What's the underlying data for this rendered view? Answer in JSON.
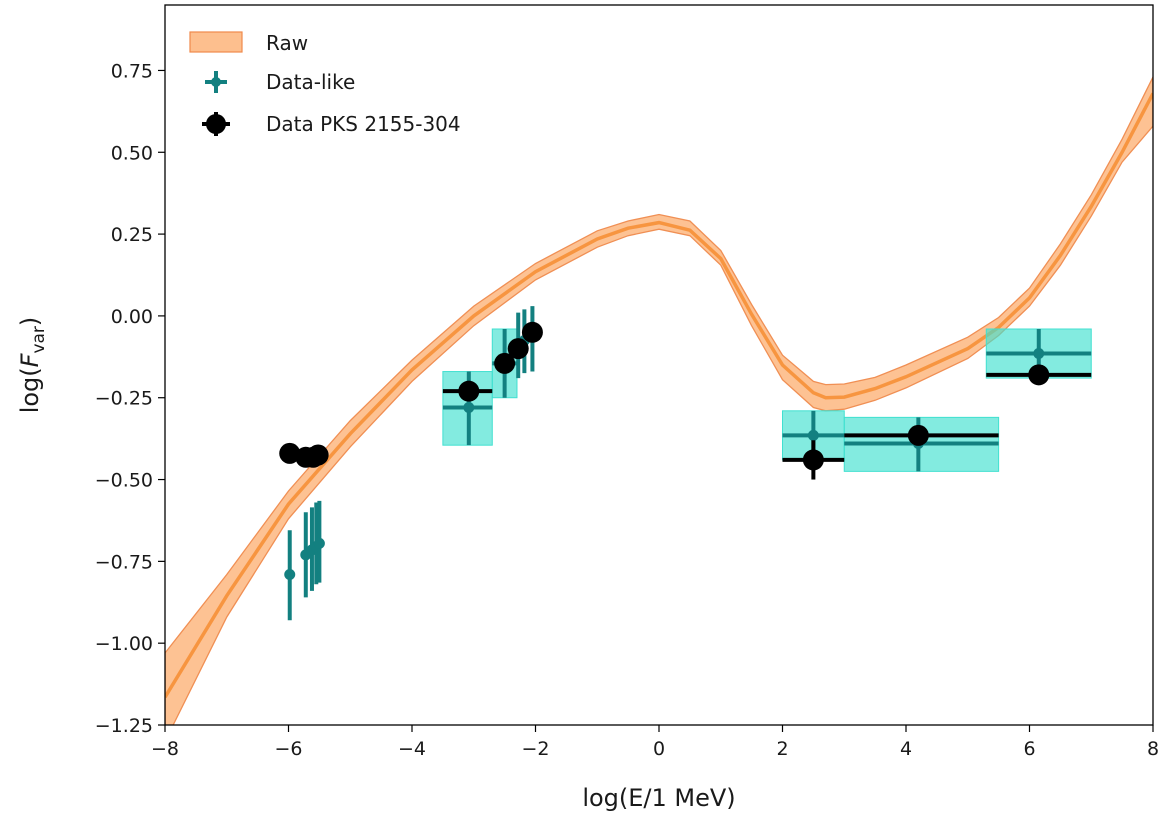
{
  "chart_data": {
    "type": "scatter",
    "xlabel": "log(E/1 MeV)",
    "ylabel": {
      "base": "log(",
      "italic": "F",
      "subscript": "var",
      "close": ")"
    },
    "xlim": [
      -8,
      8
    ],
    "ylim": [
      -1.25,
      0.95
    ],
    "x_ticks": [
      {
        "value": -8,
        "label": "−8"
      },
      {
        "value": -6,
        "label": "−6"
      },
      {
        "value": -4,
        "label": "−4"
      },
      {
        "value": -2,
        "label": "−2"
      },
      {
        "value": 0,
        "label": "0"
      },
      {
        "value": 2,
        "label": "2"
      },
      {
        "value": 4,
        "label": "4"
      },
      {
        "value": 6,
        "label": "6"
      },
      {
        "value": 8,
        "label": "8"
      }
    ],
    "y_ticks": [
      {
        "value": 0.75,
        "label": "0.75"
      },
      {
        "value": 0.5,
        "label": "0.50"
      },
      {
        "value": 0.25,
        "label": "0.25"
      },
      {
        "value": 0.0,
        "label": "0.00"
      },
      {
        "value": -0.25,
        "label": "−0.25"
      },
      {
        "value": -0.5,
        "label": "−0.50"
      },
      {
        "value": -0.75,
        "label": "−0.75"
      },
      {
        "value": -1.0,
        "label": "−1.00"
      },
      {
        "value": -1.25,
        "label": "−1.25"
      }
    ],
    "grid": false,
    "legend_position": "top-left",
    "legend": [
      "Raw",
      "Data-like",
      "Data PKS 2155-304"
    ],
    "colors": {
      "band": "#fdbf8e",
      "band_edge": "#f08a4b",
      "line": "#f79540",
      "datalike": "#138080",
      "box": "#40e0d0",
      "data": "#000000"
    },
    "series": [
      {
        "name": "Raw",
        "kind": "band",
        "x": [
          -8,
          -7,
          -6,
          -5,
          -4,
          -3,
          -2,
          -1,
          -0.5,
          0,
          0.5,
          1,
          1.5,
          2,
          2.5,
          2.7,
          3,
          3.5,
          4,
          5,
          5.5,
          6,
          6.5,
          7,
          7.5,
          8
        ],
        "center": [
          -1.165,
          -0.855,
          -0.575,
          -0.36,
          -0.165,
          0.0,
          0.135,
          0.235,
          0.268,
          0.285,
          0.262,
          0.175,
          0.005,
          -0.15,
          -0.235,
          -0.25,
          -0.248,
          -0.222,
          -0.186,
          -0.1,
          -0.035,
          0.055,
          0.185,
          0.335,
          0.5,
          0.68
        ],
        "lower": [
          -1.3,
          -0.92,
          -0.62,
          -0.4,
          -0.2,
          -0.03,
          0.11,
          0.21,
          0.245,
          0.265,
          0.245,
          0.155,
          -0.03,
          -0.195,
          -0.28,
          -0.29,
          -0.285,
          -0.258,
          -0.22,
          -0.13,
          -0.06,
          0.03,
          0.155,
          0.305,
          0.47,
          0.58
        ],
        "upper": [
          -1.03,
          -0.79,
          -0.535,
          -0.32,
          -0.135,
          0.03,
          0.16,
          0.26,
          0.29,
          0.31,
          0.29,
          0.2,
          0.035,
          -0.12,
          -0.2,
          -0.21,
          -0.208,
          -0.188,
          -0.15,
          -0.065,
          -0.005,
          0.085,
          0.22,
          0.37,
          0.54,
          0.73
        ]
      },
      {
        "name": "Data-like",
        "kind": "errorbar",
        "points": [
          {
            "x": -5.98,
            "y": -0.79,
            "xlo": -5.98,
            "xhi": -5.98,
            "ylo": -0.93,
            "yhi": -0.655,
            "box": false
          },
          {
            "x": -5.72,
            "y": -0.73,
            "xlo": -5.72,
            "xhi": -5.72,
            "ylo": -0.86,
            "yhi": -0.6,
            "box": false
          },
          {
            "x": -5.62,
            "y": -0.715,
            "xlo": -5.62,
            "xhi": -5.62,
            "ylo": -0.84,
            "yhi": -0.585,
            "box": false
          },
          {
            "x": -5.55,
            "y": -0.705,
            "xlo": -5.55,
            "xhi": -5.55,
            "ylo": -0.82,
            "yhi": -0.57,
            "box": false
          },
          {
            "x": -5.5,
            "y": -0.695,
            "xlo": -5.5,
            "xhi": -5.5,
            "ylo": -0.815,
            "yhi": -0.565,
            "box": false
          },
          {
            "x": -3.08,
            "y": -0.28,
            "xlo": -3.5,
            "xhi": -2.7,
            "ylo": -0.395,
            "yhi": -0.17,
            "box": true
          },
          {
            "x": -2.5,
            "y": -0.145,
            "xlo": -2.7,
            "xhi": -2.3,
            "ylo": -0.25,
            "yhi": -0.04,
            "box": true
          },
          {
            "x": -2.28,
            "y": -0.09,
            "xlo": -2.28,
            "xhi": -2.28,
            "ylo": -0.19,
            "yhi": 0.01,
            "box": false
          },
          {
            "x": -2.18,
            "y": -0.075,
            "xlo": -2.18,
            "xhi": -2.18,
            "ylo": -0.175,
            "yhi": 0.02,
            "box": false
          },
          {
            "x": -2.05,
            "y": -0.055,
            "xlo": -2.05,
            "xhi": -2.05,
            "ylo": -0.17,
            "yhi": 0.03,
            "box": false
          },
          {
            "x": 2.5,
            "y": -0.365,
            "xlo": 2.0,
            "xhi": 3.0,
            "ylo": -0.44,
            "yhi": -0.29,
            "box": true
          },
          {
            "x": 4.2,
            "y": -0.39,
            "xlo": 3.0,
            "xhi": 5.5,
            "ylo": -0.475,
            "yhi": -0.31,
            "box": true
          },
          {
            "x": 6.15,
            "y": -0.115,
            "xlo": 5.3,
            "xhi": 7.0,
            "ylo": -0.19,
            "yhi": -0.04,
            "box": true
          }
        ]
      },
      {
        "name": "Data PKS 2155-304",
        "kind": "errorbar",
        "points": [
          {
            "x": -5.98,
            "y": -0.42,
            "xlo": -5.98,
            "xhi": -5.98,
            "ylo": -0.42,
            "yhi": -0.42
          },
          {
            "x": -5.72,
            "y": -0.432,
            "xlo": -5.72,
            "xhi": -5.72,
            "ylo": -0.432,
            "yhi": -0.432
          },
          {
            "x": -5.6,
            "y": -0.432,
            "xlo": -5.6,
            "xhi": -5.6,
            "ylo": -0.432,
            "yhi": -0.432
          },
          {
            "x": -5.52,
            "y": -0.425,
            "xlo": -5.52,
            "xhi": -5.52,
            "ylo": -0.425,
            "yhi": -0.425
          },
          {
            "x": -3.08,
            "y": -0.23,
            "xlo": -3.5,
            "xhi": -2.7,
            "ylo": -0.23,
            "yhi": -0.23
          },
          {
            "x": -2.5,
            "y": -0.145,
            "xlo": -2.5,
            "xhi": -2.5,
            "ylo": -0.145,
            "yhi": -0.145
          },
          {
            "x": -2.28,
            "y": -0.1,
            "xlo": -2.28,
            "xhi": -2.28,
            "ylo": -0.1,
            "yhi": -0.1
          },
          {
            "x": -2.05,
            "y": -0.05,
            "xlo": -2.05,
            "xhi": -2.05,
            "ylo": -0.05,
            "yhi": -0.05
          },
          {
            "x": 2.5,
            "y": -0.44,
            "xlo": 2.0,
            "xhi": 3.0,
            "ylo": -0.5,
            "yhi": -0.38
          },
          {
            "x": 4.2,
            "y": -0.365,
            "xlo": 3.0,
            "xhi": 5.5,
            "ylo": -0.365,
            "yhi": -0.365
          },
          {
            "x": 6.15,
            "y": -0.18,
            "xlo": 5.3,
            "xhi": 7.0,
            "ylo": -0.18,
            "yhi": -0.18
          }
        ]
      }
    ]
  }
}
